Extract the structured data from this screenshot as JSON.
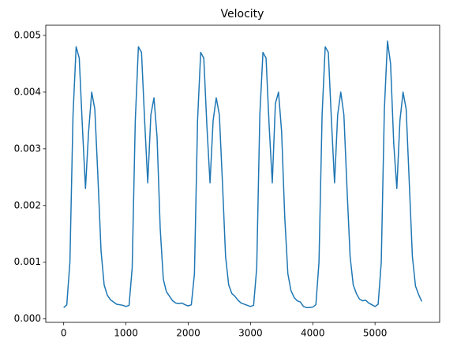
{
  "chart_data": {
    "type": "line",
    "title": "Velocity",
    "x": [
      0,
      50,
      100,
      150,
      200,
      250,
      300,
      350,
      400,
      450,
      500,
      550,
      600,
      650,
      700,
      750,
      800,
      850,
      900,
      950,
      1000,
      1050,
      1100,
      1150,
      1200,
      1250,
      1300,
      1350,
      1400,
      1450,
      1500,
      1550,
      1600,
      1650,
      1700,
      1750,
      1800,
      1850,
      1900,
      1950,
      2000,
      2050,
      2100,
      2150,
      2200,
      2250,
      2300,
      2350,
      2400,
      2450,
      2500,
      2550,
      2600,
      2650,
      2700,
      2750,
      2800,
      2850,
      2900,
      2950,
      3000,
      3050,
      3100,
      3150,
      3200,
      3250,
      3300,
      3350,
      3400,
      3450,
      3500,
      3550,
      3600,
      3650,
      3700,
      3750,
      3800,
      3850,
      3900,
      3950,
      4000,
      4050,
      4100,
      4150,
      4200,
      4250,
      4300,
      4350,
      4400,
      4450,
      4500,
      4550,
      4600,
      4650,
      4700,
      4750,
      4800,
      4850,
      4900,
      4950,
      5000,
      5050,
      5100,
      5150,
      5200,
      5250,
      5300,
      5350,
      5400,
      5450,
      5500,
      5550,
      5600,
      5650,
      5700,
      5750
    ],
    "series": [
      {
        "name": "velocity",
        "color": "#1f77b4",
        "values": [
          0.0002,
          0.00025,
          0.001,
          0.0036,
          0.0048,
          0.0046,
          0.0034,
          0.0023,
          0.0033,
          0.004,
          0.0037,
          0.0025,
          0.0012,
          0.0006,
          0.00042,
          0.00034,
          0.0003,
          0.00026,
          0.00025,
          0.00024,
          0.00022,
          0.00024,
          0.0009,
          0.0035,
          0.0048,
          0.0047,
          0.0035,
          0.0024,
          0.0036,
          0.0039,
          0.0032,
          0.0016,
          0.0007,
          0.00048,
          0.0004,
          0.00032,
          0.00028,
          0.00027,
          0.00028,
          0.00025,
          0.00023,
          0.00025,
          0.0008,
          0.0035,
          0.0047,
          0.0046,
          0.0034,
          0.0024,
          0.0035,
          0.0039,
          0.0036,
          0.0024,
          0.0011,
          0.0006,
          0.00045,
          0.0004,
          0.00033,
          0.00028,
          0.00026,
          0.00024,
          0.00022,
          0.00024,
          0.0009,
          0.0036,
          0.0047,
          0.0046,
          0.0034,
          0.0024,
          0.0038,
          0.004,
          0.0033,
          0.0018,
          0.0008,
          0.0005,
          0.00038,
          0.00032,
          0.0003,
          0.00022,
          0.0002,
          0.0002,
          0.00021,
          0.00025,
          0.001,
          0.0036,
          0.0048,
          0.0047,
          0.0035,
          0.0024,
          0.0036,
          0.004,
          0.0036,
          0.0023,
          0.0011,
          0.0006,
          0.00045,
          0.00035,
          0.00032,
          0.00033,
          0.00028,
          0.00025,
          0.00022,
          0.00026,
          0.001,
          0.0037,
          0.0049,
          0.0045,
          0.0031,
          0.0023,
          0.0035,
          0.004,
          0.0037,
          0.0024,
          0.0011,
          0.00058,
          0.00043,
          0.00031
        ]
      }
    ],
    "xlim": [
      -287.5,
      6037.5
    ],
    "xticks": [
      0,
      1000,
      2000,
      3000,
      4000,
      5000
    ],
    "ylim": [
      -6e-05,
      0.00518
    ],
    "yticks": [
      {
        "value": 0,
        "label": "0.000"
      },
      0.001,
      0.002,
      0.003,
      0.004,
      0.005
    ]
  }
}
